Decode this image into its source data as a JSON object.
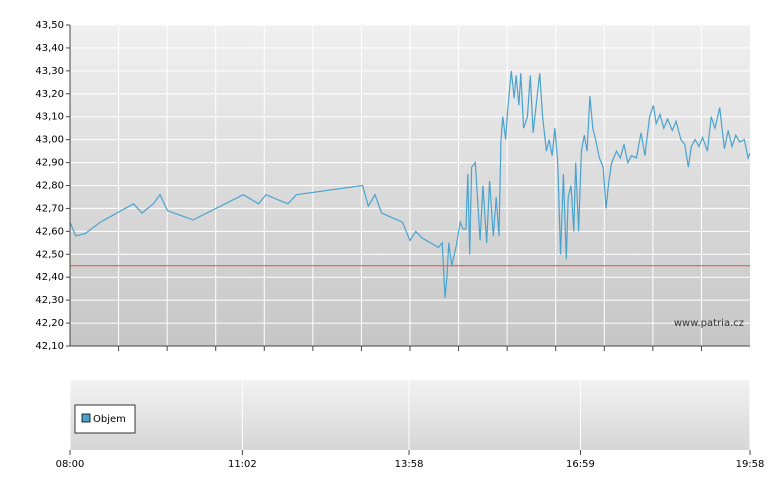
{
  "chart_data": {
    "type": "line",
    "x": [
      "08:00",
      "08:06",
      "08:16",
      "08:32",
      "09:07",
      "09:16",
      "09:28",
      "09:35",
      "09:43",
      "10:10",
      "11:03",
      "11:19",
      "11:27",
      "11:50",
      "11:59",
      "13:09",
      "13:15",
      "13:22",
      "13:29",
      "13:51",
      "13:59",
      "14:05",
      "14:12",
      "14:29",
      "14:33",
      "14:36",
      "14:38",
      "14:40",
      "14:43",
      "14:48",
      "14:52",
      "14:55",
      "14:58",
      "15:00",
      "15:02",
      "15:04",
      "15:08",
      "15:13",
      "15:16",
      "15:20",
      "15:23",
      "15:27",
      "15:30",
      "15:33",
      "15:35",
      "15:37",
      "15:40",
      "15:42",
      "15:46",
      "15:49",
      "15:51",
      "15:54",
      "15:56",
      "15:59",
      "16:03",
      "16:06",
      "16:09",
      "16:13",
      "16:16",
      "16:19",
      "16:23",
      "16:26",
      "16:29",
      "16:32",
      "16:35",
      "16:38",
      "16:41",
      "16:44",
      "16:46",
      "16:49",
      "16:52",
      "16:54",
      "16:57",
      "17:00",
      "17:03",
      "17:06",
      "17:09",
      "17:12",
      "17:15",
      "17:19",
      "17:23",
      "17:26",
      "17:29",
      "17:32",
      "17:37",
      "17:41",
      "17:45",
      "17:49",
      "17:53",
      "17:58",
      "18:03",
      "18:07",
      "18:12",
      "18:16",
      "18:19",
      "18:23",
      "18:27",
      "18:31",
      "18:36",
      "18:40",
      "18:45",
      "18:49",
      "18:53",
      "18:56",
      "19:00",
      "19:04",
      "19:08",
      "19:13",
      "19:17",
      "19:21",
      "19:26",
      "19:31",
      "19:35",
      "19:39",
      "19:43",
      "19:47",
      "19:52",
      "19:56",
      "19:58"
    ],
    "series": [
      {
        "color": "#4aa3cf",
        "values": [
          42.64,
          42.58,
          42.59,
          42.64,
          42.72,
          42.68,
          42.72,
          42.76,
          42.69,
          42.65,
          42.76,
          42.72,
          42.76,
          42.72,
          42.76,
          42.8,
          42.71,
          42.76,
          42.68,
          42.64,
          42.56,
          42.6,
          42.57,
          42.53,
          42.55,
          42.31,
          42.4,
          42.55,
          42.45,
          42.54,
          42.64,
          42.61,
          42.61,
          42.85,
          42.5,
          42.88,
          42.9,
          42.56,
          42.8,
          42.55,
          42.82,
          42.58,
          42.75,
          42.58,
          42.99,
          43.1,
          43.0,
          43.12,
          43.3,
          43.18,
          43.28,
          43.15,
          43.29,
          43.05,
          43.1,
          43.28,
          43.03,
          43.18,
          43.29,
          43.1,
          42.95,
          43.0,
          42.93,
          43.05,
          42.9,
          42.5,
          42.85,
          42.48,
          42.75,
          42.8,
          42.6,
          42.9,
          42.6,
          42.95,
          43.02,
          42.95,
          43.19,
          43.05,
          43.0,
          42.92,
          42.88,
          42.7,
          42.82,
          42.9,
          42.95,
          42.92,
          42.98,
          42.9,
          42.93,
          42.92,
          43.03,
          42.93,
          43.1,
          43.15,
          43.07,
          43.11,
          43.05,
          43.09,
          43.04,
          43.08,
          43.0,
          42.98,
          42.88,
          42.97,
          43.0,
          42.97,
          43.01,
          42.95,
          43.1,
          43.05,
          43.14,
          42.96,
          43.04,
          42.97,
          43.02,
          42.99,
          43.0,
          42.92,
          42.94
        ]
      }
    ],
    "reference_line": {
      "value": 42.45,
      "color": "#e05050"
    },
    "ylim": [
      42.1,
      43.5
    ],
    "yticks": [
      {
        "value": 42.1,
        "label": "42,10"
      },
      {
        "value": 42.2,
        "label": "42,20"
      },
      {
        "value": 42.3,
        "label": "42,30"
      },
      {
        "value": 42.4,
        "label": "42,40"
      },
      {
        "value": 42.5,
        "label": "42,50"
      },
      {
        "value": 42.6,
        "label": "42,60"
      },
      {
        "value": 42.7,
        "label": "42,70"
      },
      {
        "value": 42.8,
        "label": "42,80"
      },
      {
        "value": 42.9,
        "label": "42,90"
      },
      {
        "value": 43.0,
        "label": "43,00"
      },
      {
        "value": 43.1,
        "label": "43,10"
      },
      {
        "value": 43.2,
        "label": "43,20"
      },
      {
        "value": 43.3,
        "label": "43,30"
      },
      {
        "value": 43.4,
        "label": "43,40"
      },
      {
        "value": 43.5,
        "label": "43,50"
      }
    ],
    "xlim": [
      "08:00",
      "19:58"
    ],
    "xticks": [
      "08:00",
      "11:02",
      "13:58",
      "16:59",
      "19:58"
    ],
    "grid": true,
    "watermark": "www.patria.cz",
    "volume": {
      "name": "Objem",
      "color": "#4aa3cf"
    }
  }
}
